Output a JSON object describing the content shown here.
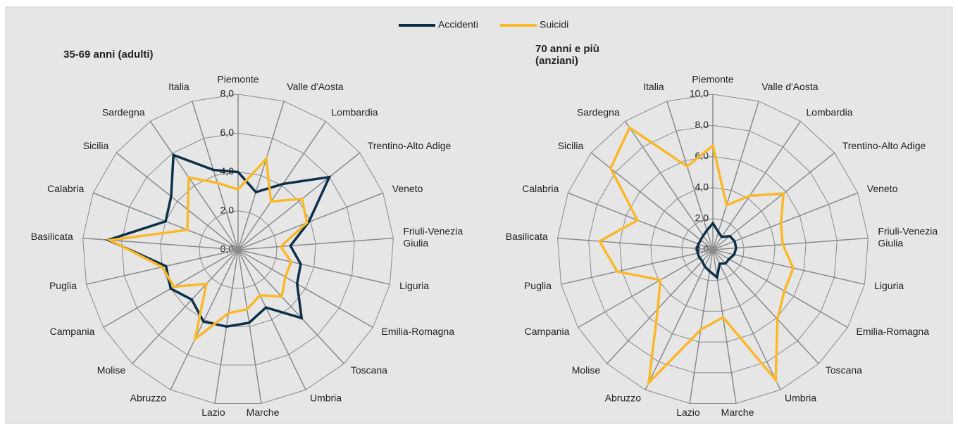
{
  "chart_data": [
    {
      "type": "radar",
      "title": "35-69 anni (adulti)",
      "categories": [
        "Piemonte",
        "Valle d'Aosta",
        "Lombardia",
        "Trentino-Alto Adige",
        "Veneto",
        "Friuli-Venezia Giulia",
        "Liguria",
        "Emilia-Romagna",
        "Toscana",
        "Umbria",
        "Marche",
        "Lazio",
        "Abruzzo",
        "Molise",
        "Campania",
        "Puglia",
        "Basilicata",
        "Calabria",
        "Sicilia",
        "Sardegna",
        "Italia"
      ],
      "ylim": [
        0,
        8
      ],
      "yticks": [
        {
          "value": 0,
          "label": "0,0"
        },
        {
          "value": 2,
          "label": "2,0"
        },
        {
          "value": 4,
          "label": "4,0"
        },
        {
          "value": 6,
          "label": "6,0"
        },
        {
          "value": 8,
          "label": "8,0"
        }
      ],
      "series": [
        {
          "name": "Accidenti",
          "color": "#0d3049",
          "values": [
            4.0,
            3.1,
            4.1,
            6.0,
            3.9,
            2.7,
            3.3,
            3.5,
            4.8,
            3.3,
            3.8,
            4.0,
            4.1,
            3.5,
            4.0,
            3.8,
            6.7,
            4.0,
            4.4,
            5.9,
            4.3
          ]
        },
        {
          "name": "Suicidi",
          "color": "#fbb829",
          "values": [
            3.1,
            4.9,
            3.0,
            4.2,
            3.8,
            2.2,
            2.8,
            2.8,
            3.3,
            2.6,
            3.1,
            3.3,
            5.1,
            2.4,
            3.8,
            4.0,
            6.6,
            2.8,
            3.3,
            4.5,
            3.6
          ]
        }
      ]
    },
    {
      "type": "radar",
      "title": "70 anni e più (anziani)",
      "categories": [
        "Piemonte",
        "Valle d'Aosta",
        "Lombardia",
        "Trentino-Alto Adige",
        "Veneto",
        "Friuli-Venezia Giulia",
        "Liguria",
        "Emilia-Romagna",
        "Toscana",
        "Umbria",
        "Marche",
        "Lazio",
        "Abruzzo",
        "Molise",
        "Campania",
        "Puglia",
        "Basilicata",
        "Calabria",
        "Sicilia",
        "Sardegna",
        "Italia"
      ],
      "ylim": [
        0,
        10
      ],
      "yticks": [
        {
          "value": 0,
          "label": "0,0"
        },
        {
          "value": 2,
          "label": "2,0"
        },
        {
          "value": 4,
          "label": "4,0"
        },
        {
          "value": 6,
          "label": "6,0"
        },
        {
          "value": 8,
          "label": "8,0"
        },
        {
          "value": 10,
          "label": "10,0"
        }
      ],
      "series": [
        {
          "name": "Accidenti",
          "color": "#0d3049",
          "values": [
            1.7,
            1.2,
            1.0,
            1.4,
            1.5,
            1.5,
            1.4,
            1.2,
            1.2,
            1.0,
            1.8,
            1.4,
            1.2,
            1.0,
            1.0,
            1.0,
            1.0,
            1.0,
            1.0,
            1.1,
            1.3
          ]
        },
        {
          "name": "Suicidi",
          "color": "#fbb829",
          "values": [
            6.7,
            3.0,
            4.2,
            5.8,
            4.7,
            4.5,
            5.3,
            5.3,
            6.1,
            9.3,
            4.4,
            5.2,
            9.5,
            5.2,
            3.9,
            6.3,
            7.3,
            5.2,
            8.4,
            9.5,
            5.6
          ]
        }
      ]
    }
  ]
}
